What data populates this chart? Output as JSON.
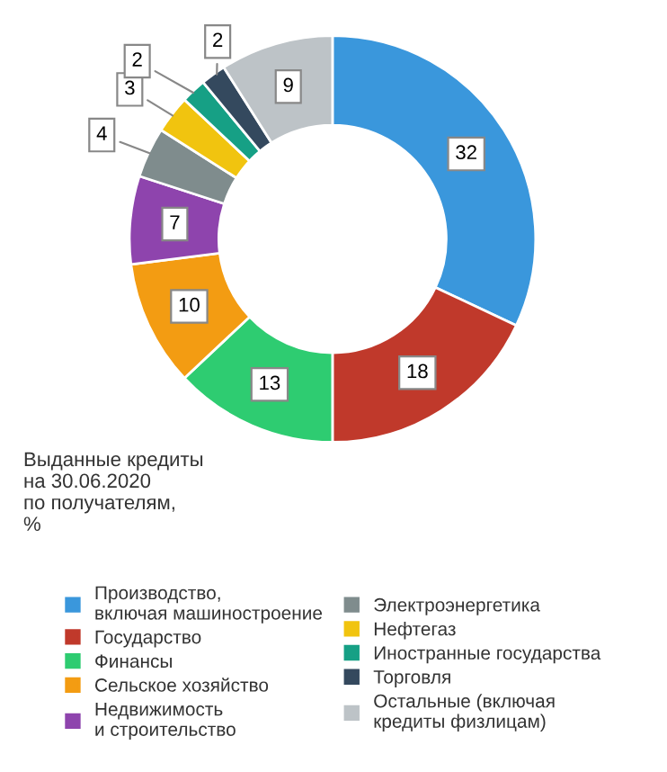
{
  "chart_data": {
    "type": "donut",
    "title": "Выданные кредиты\nна 30.06.2020\nпо получателям,\n%",
    "categories": [
      "Производство,\nвключая машиностроение",
      "Государство",
      "Финансы",
      "Сельское хозяйство",
      "Недвижимость\nи строительство",
      "Электроэнергетика",
      "Нефтегаз",
      "Иностранные государства",
      "Торговля",
      "Остальные (включая\nкредиты физлицам)"
    ],
    "values": [
      32,
      18,
      13,
      10,
      7,
      4,
      3,
      2,
      2,
      9
    ],
    "colors": [
      "#3a97dc",
      "#c0392b",
      "#2ecc71",
      "#f39c12",
      "#8e44ad",
      "#7f8c8d",
      "#f1c40f",
      "#16a085",
      "#34495e",
      "#bdc3c7"
    ],
    "data_labels": true,
    "legend": "bottom"
  }
}
